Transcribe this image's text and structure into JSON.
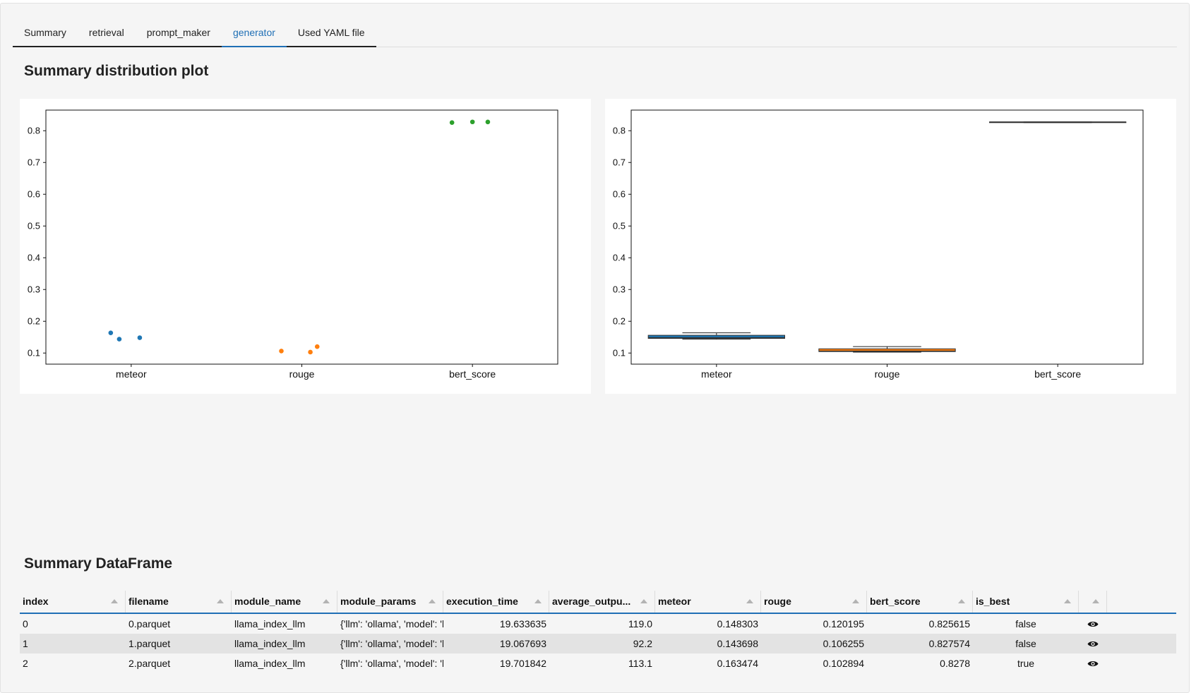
{
  "tabs": [
    {
      "label": "Summary",
      "active": false
    },
    {
      "label": "retrieval",
      "active": false
    },
    {
      "label": "prompt_maker",
      "active": false
    },
    {
      "label": "generator",
      "active": true
    },
    {
      "label": "Used YAML file",
      "active": false
    }
  ],
  "plot_section_title": "Summary distribution plot",
  "table_section_title": "Summary DataFrame",
  "chart_data": [
    {
      "type": "scatter",
      "title": "",
      "xlabel": "",
      "ylabel": "",
      "categories": [
        "meteor",
        "rouge",
        "bert_score"
      ],
      "ylim": [
        0.065,
        0.865
      ],
      "yticks": [
        0.1,
        0.2,
        0.3,
        0.4,
        0.5,
        0.6,
        0.7,
        0.8
      ],
      "series": [
        {
          "category": "meteor",
          "color": "#1f77b4",
          "values": [
            0.143698,
            0.148303,
            0.163474
          ]
        },
        {
          "category": "rouge",
          "color": "#ff7f0e",
          "values": [
            0.102894,
            0.106255,
            0.120195
          ]
        },
        {
          "category": "bert_score",
          "color": "#2ca02c",
          "values": [
            0.825615,
            0.827574,
            0.8278
          ]
        }
      ]
    },
    {
      "type": "box",
      "title": "",
      "xlabel": "",
      "ylabel": "",
      "categories": [
        "meteor",
        "rouge",
        "bert_score"
      ],
      "ylim": [
        0.065,
        0.865
      ],
      "yticks": [
        0.1,
        0.2,
        0.3,
        0.4,
        0.5,
        0.6,
        0.7,
        0.8
      ],
      "series": [
        {
          "category": "meteor",
          "color": "#1f77b4",
          "min": 0.143698,
          "q1": 0.146,
          "median": 0.148303,
          "q3": 0.155889,
          "max": 0.163474
        },
        {
          "category": "rouge",
          "color": "#ff7f0e",
          "min": 0.102894,
          "q1": 0.104575,
          "median": 0.106255,
          "q3": 0.113225,
          "max": 0.120195
        },
        {
          "category": "bert_score",
          "color": "#2ca02c",
          "min": 0.825615,
          "q1": 0.826595,
          "median": 0.827574,
          "q3": 0.827687,
          "max": 0.8278
        }
      ]
    }
  ],
  "table": {
    "columns": [
      "index",
      "filename",
      "module_name",
      "module_params",
      "execution_time",
      "average_outpu...",
      "meteor",
      "rouge",
      "bert_score",
      "is_best"
    ],
    "rows": [
      [
        "0",
        "0.parquet",
        "llama_index_llm",
        "{'llm': 'ollama', 'model': 'l",
        "19.633635",
        "119.0",
        "0.148303",
        "0.120195",
        "0.825615",
        "false"
      ],
      [
        "1",
        "1.parquet",
        "llama_index_llm",
        "{'llm': 'ollama', 'model': 'l",
        "19.067693",
        "92.2",
        "0.143698",
        "0.106255",
        "0.827574",
        "false"
      ],
      [
        "2",
        "2.parquet",
        "llama_index_llm",
        "{'llm': 'ollama', 'model': 'l",
        "19.701842",
        "113.1",
        "0.163474",
        "0.102894",
        "0.8278",
        "true"
      ]
    ],
    "row_action_icon": "eye-icon"
  }
}
